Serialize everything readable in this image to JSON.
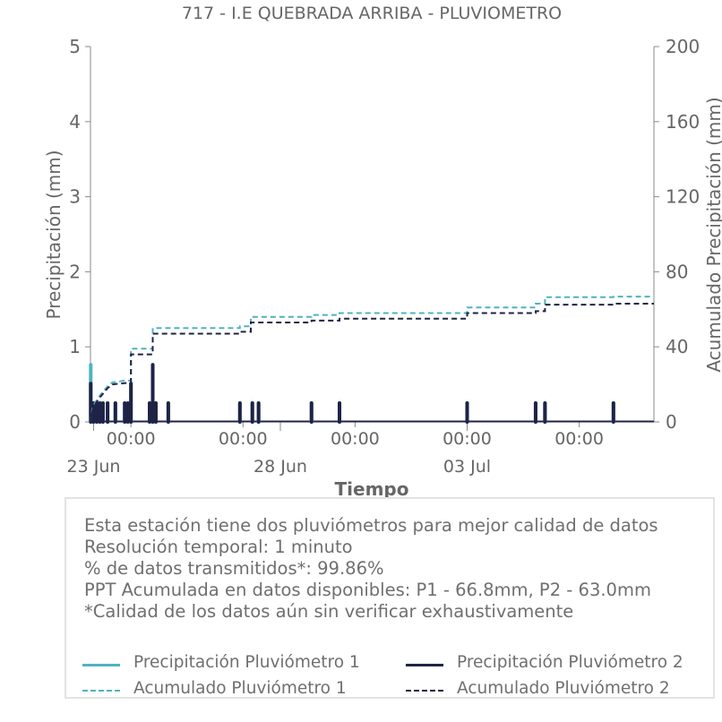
{
  "chart_data": {
    "type": "bar+line",
    "title": "717 - I.E QUEBRADA ARRIBA - PLUVIOMETRO",
    "xlabel": "Tiempo",
    "ylabel_left": "Precipitación (mm)",
    "ylabel_right": "Acumulado Precipitación (mm)",
    "ylim_left": [
      0,
      5
    ],
    "ylim_right": [
      0,
      200
    ],
    "yticks_left": [
      "0",
      "1",
      "2",
      "3",
      "4",
      "5"
    ],
    "yticks_right": [
      "0",
      "40",
      "80",
      "120",
      "160",
      "200"
    ],
    "x_range_days": [
      "2025-06-22T22:00",
      "2025-07-08T00:00"
    ],
    "xticks_time": [
      {
        "t": "2025-06-24T00:00",
        "label": "00:00"
      },
      {
        "t": "2025-06-27T00:00",
        "label": "00:00"
      },
      {
        "t": "2025-06-30T00:00",
        "label": "00:00"
      },
      {
        "t": "2025-07-03T00:00",
        "label": "00:00"
      },
      {
        "t": "2025-07-06T00:00",
        "label": "00:00"
      }
    ],
    "xticks_date": [
      {
        "t": "2025-06-23T00:00",
        "label": "23 Jun"
      },
      {
        "t": "2025-06-28T00:00",
        "label": "28 Jun"
      },
      {
        "t": "2025-07-03T00:00",
        "label": "03 Jul"
      }
    ],
    "grid": false,
    "colors": {
      "p1": "#4fb3bf",
      "p2": "#1f2346"
    },
    "series": [
      {
        "name": "Precipitación Pluviómetro 1",
        "kind": "bar",
        "axis": "left",
        "color": "#4fb3bf",
        "points": [
          {
            "t": "2025-06-22T22:10",
            "v": 0.76
          },
          {
            "t": "2025-06-22T23:00",
            "v": 0.25
          },
          {
            "t": "2025-06-23T00:00",
            "v": 0.25
          },
          {
            "t": "2025-06-23T02:00",
            "v": 0.25
          },
          {
            "t": "2025-06-23T04:00",
            "v": 0.25
          },
          {
            "t": "2025-06-23T06:00",
            "v": 0.25
          },
          {
            "t": "2025-06-23T09:00",
            "v": 0.25
          },
          {
            "t": "2025-06-23T14:00",
            "v": 0.25
          },
          {
            "t": "2025-06-23T20:00",
            "v": 0.25
          },
          {
            "t": "2025-06-24T00:00",
            "v": 0.51
          },
          {
            "t": "2025-06-24T12:00",
            "v": 0.25
          },
          {
            "t": "2025-06-24T14:00",
            "v": 0.76
          },
          {
            "t": "2025-06-24T16:00",
            "v": 0.25
          },
          {
            "t": "2025-06-25T00:00",
            "v": 0.25
          },
          {
            "t": "2025-06-26T22:00",
            "v": 0.25
          },
          {
            "t": "2025-06-27T06:00",
            "v": 0.25
          },
          {
            "t": "2025-06-27T10:00",
            "v": 0.25
          },
          {
            "t": "2025-06-28T20:00",
            "v": 0.25
          },
          {
            "t": "2025-06-29T14:00",
            "v": 0.25
          },
          {
            "t": "2025-07-03T00:00",
            "v": 0.25
          },
          {
            "t": "2025-07-04T20:00",
            "v": 0.25
          },
          {
            "t": "2025-07-05T02:00",
            "v": 0.25
          },
          {
            "t": "2025-07-06T22:00",
            "v": 0.25
          }
        ]
      },
      {
        "name": "Precipitación Pluviómetro 2",
        "kind": "bar",
        "axis": "left",
        "color": "#1f2346",
        "points": [
          {
            "t": "2025-06-22T22:10",
            "v": 0.51
          },
          {
            "t": "2025-06-23T00:00",
            "v": 0.25
          },
          {
            "t": "2025-06-23T02:00",
            "v": 0.25
          },
          {
            "t": "2025-06-23T04:00",
            "v": 0.25
          },
          {
            "t": "2025-06-23T06:00",
            "v": 0.25
          },
          {
            "t": "2025-06-23T09:00",
            "v": 0.25
          },
          {
            "t": "2025-06-23T14:00",
            "v": 0.25
          },
          {
            "t": "2025-06-23T20:00",
            "v": 0.25
          },
          {
            "t": "2025-06-23T22:00",
            "v": 0.25
          },
          {
            "t": "2025-06-24T00:00",
            "v": 0.51
          },
          {
            "t": "2025-06-24T12:00",
            "v": 0.25
          },
          {
            "t": "2025-06-24T14:00",
            "v": 0.76
          },
          {
            "t": "2025-06-24T16:00",
            "v": 0.25
          },
          {
            "t": "2025-06-25T00:00",
            "v": 0.25
          },
          {
            "t": "2025-06-26T22:00",
            "v": 0.25
          },
          {
            "t": "2025-06-27T06:00",
            "v": 0.25
          },
          {
            "t": "2025-06-27T10:00",
            "v": 0.25
          },
          {
            "t": "2025-06-28T20:00",
            "v": 0.25
          },
          {
            "t": "2025-06-29T14:00",
            "v": 0.25
          },
          {
            "t": "2025-07-03T00:00",
            "v": 0.25
          },
          {
            "t": "2025-07-04T20:00",
            "v": 0.25
          },
          {
            "t": "2025-07-05T02:00",
            "v": 0.25
          },
          {
            "t": "2025-07-06T22:00",
            "v": 0.25
          }
        ]
      },
      {
        "name": "Acumulado Pluviómetro 1",
        "kind": "line",
        "axis": "right",
        "color": "#4fb3bf",
        "dashed": true,
        "points": [
          {
            "t": "2025-06-22T22:00",
            "v": 0
          },
          {
            "t": "2025-06-22T23:00",
            "v": 6
          },
          {
            "t": "2025-06-23T00:00",
            "v": 9
          },
          {
            "t": "2025-06-23T04:00",
            "v": 14
          },
          {
            "t": "2025-06-23T09:00",
            "v": 19
          },
          {
            "t": "2025-06-23T12:00",
            "v": 21
          },
          {
            "t": "2025-06-23T20:00",
            "v": 22
          },
          {
            "t": "2025-06-24T00:00",
            "v": 22
          },
          {
            "t": "2025-06-24T00:01",
            "v": 39
          },
          {
            "t": "2025-06-24T14:00",
            "v": 39
          },
          {
            "t": "2025-06-24T14:01",
            "v": 50
          },
          {
            "t": "2025-06-26T22:00",
            "v": 50
          },
          {
            "t": "2025-06-26T22:01",
            "v": 51
          },
          {
            "t": "2025-06-27T05:00",
            "v": 51
          },
          {
            "t": "2025-06-27T05:01",
            "v": 56
          },
          {
            "t": "2025-06-28T20:00",
            "v": 56
          },
          {
            "t": "2025-06-28T20:01",
            "v": 57
          },
          {
            "t": "2025-06-29T14:00",
            "v": 57
          },
          {
            "t": "2025-06-29T14:01",
            "v": 58
          },
          {
            "t": "2025-07-03T00:00",
            "v": 58
          },
          {
            "t": "2025-07-03T00:01",
            "v": 61
          },
          {
            "t": "2025-07-04T20:00",
            "v": 61
          },
          {
            "t": "2025-07-04T20:01",
            "v": 63
          },
          {
            "t": "2025-07-05T02:00",
            "v": 63
          },
          {
            "t": "2025-07-05T02:01",
            "v": 66.5
          },
          {
            "t": "2025-07-06T22:00",
            "v": 66.5
          },
          {
            "t": "2025-07-06T22:01",
            "v": 66.8
          },
          {
            "t": "2025-07-08T00:00",
            "v": 66.8
          }
        ]
      },
      {
        "name": "Acumulado Pluviómetro 2",
        "kind": "line",
        "axis": "right",
        "color": "#1f2346",
        "dashed": true,
        "points": [
          {
            "t": "2025-06-22T22:00",
            "v": 0
          },
          {
            "t": "2025-06-22T23:00",
            "v": 5
          },
          {
            "t": "2025-06-23T00:00",
            "v": 8
          },
          {
            "t": "2025-06-23T04:00",
            "v": 13
          },
          {
            "t": "2025-06-23T09:00",
            "v": 18
          },
          {
            "t": "2025-06-23T12:00",
            "v": 20
          },
          {
            "t": "2025-06-24T00:00",
            "v": 21
          },
          {
            "t": "2025-06-24T00:01",
            "v": 36
          },
          {
            "t": "2025-06-24T14:00",
            "v": 36
          },
          {
            "t": "2025-06-24T14:01",
            "v": 47
          },
          {
            "t": "2025-06-26T22:00",
            "v": 47
          },
          {
            "t": "2025-06-26T22:01",
            "v": 48
          },
          {
            "t": "2025-06-27T05:00",
            "v": 48
          },
          {
            "t": "2025-06-27T05:01",
            "v": 53
          },
          {
            "t": "2025-06-28T20:00",
            "v": 53
          },
          {
            "t": "2025-06-28T20:01",
            "v": 54
          },
          {
            "t": "2025-06-29T14:00",
            "v": 54
          },
          {
            "t": "2025-06-29T14:01",
            "v": 55
          },
          {
            "t": "2025-07-03T00:00",
            "v": 55
          },
          {
            "t": "2025-07-03T00:01",
            "v": 58
          },
          {
            "t": "2025-07-04T20:00",
            "v": 58
          },
          {
            "t": "2025-07-04T20:01",
            "v": 59
          },
          {
            "t": "2025-07-05T02:00",
            "v": 59
          },
          {
            "t": "2025-07-05T02:01",
            "v": 62.5
          },
          {
            "t": "2025-07-06T22:00",
            "v": 62.5
          },
          {
            "t": "2025-07-06T22:01",
            "v": 63.0
          },
          {
            "t": "2025-07-08T00:00",
            "v": 63.0
          }
        ]
      }
    ]
  },
  "info": {
    "line1": "Esta estación tiene dos pluviómetros para mejor calidad de datos",
    "line2": "Resolución temporal: 1 minuto",
    "line3": "% de datos transmitidos*: 99.86%",
    "line4": "PPT Acumulada en datos disponibles: P1 - 66.8mm, P2 - 63.0mm",
    "line5": "*Calidad de los datos aún sin verificar exhaustivamente"
  },
  "legend": {
    "p1_bar": "Precipitación Pluviómetro 1",
    "p2_bar": "Precipitación Pluviómetro 2",
    "p1_cum": "Acumulado Pluviómetro 1",
    "p2_cum": "Acumulado Pluviómetro 2"
  }
}
